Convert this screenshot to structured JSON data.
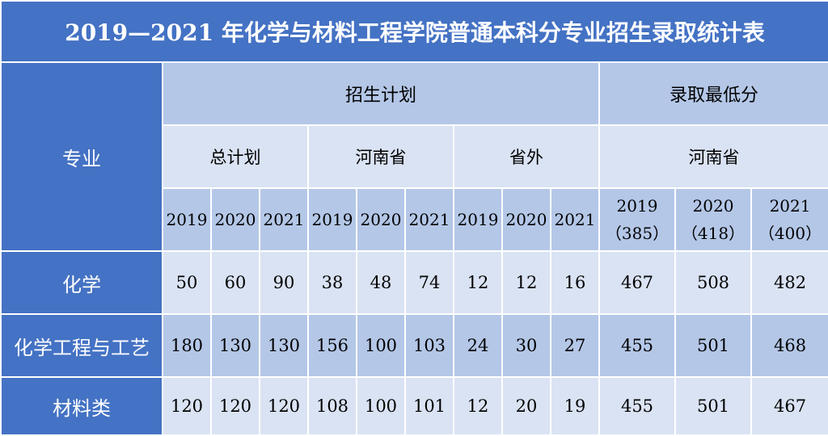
{
  "title": "2019—2021 年化学与材料工程学院普通本科分专业招生录取统计表",
  "headers": {
    "major": "专业",
    "plan": "招生计划",
    "min_score": "录取最低分",
    "total_plan": "总计划",
    "henan": "河南省",
    "outside": "省外",
    "henan_score": "河南省",
    "years": [
      "2019",
      "2020",
      "2021"
    ],
    "score_years": [
      {
        "year": "2019",
        "line": "（385）"
      },
      {
        "year": "2020",
        "line": "（418）"
      },
      {
        "year": "2021",
        "line": "（400）"
      }
    ]
  },
  "rows": [
    {
      "major": "化学",
      "values": [
        "50",
        "60",
        "90",
        "38",
        "48",
        "74",
        "12",
        "12",
        "16",
        "467",
        "508",
        "482"
      ]
    },
    {
      "major": "化学工程与工艺",
      "values": [
        "180",
        "130",
        "130",
        "156",
        "100",
        "103",
        "24",
        "30",
        "27",
        "455",
        "501",
        "468"
      ]
    },
    {
      "major": "材料类",
      "values": [
        "120",
        "120",
        "120",
        "108",
        "100",
        "101",
        "12",
        "20",
        "19",
        "455",
        "501",
        "467"
      ]
    }
  ],
  "colors": {
    "header_blue": "#4472c4",
    "mid_blue": "#b4c7e7",
    "light_blue": "#dae3f3"
  }
}
